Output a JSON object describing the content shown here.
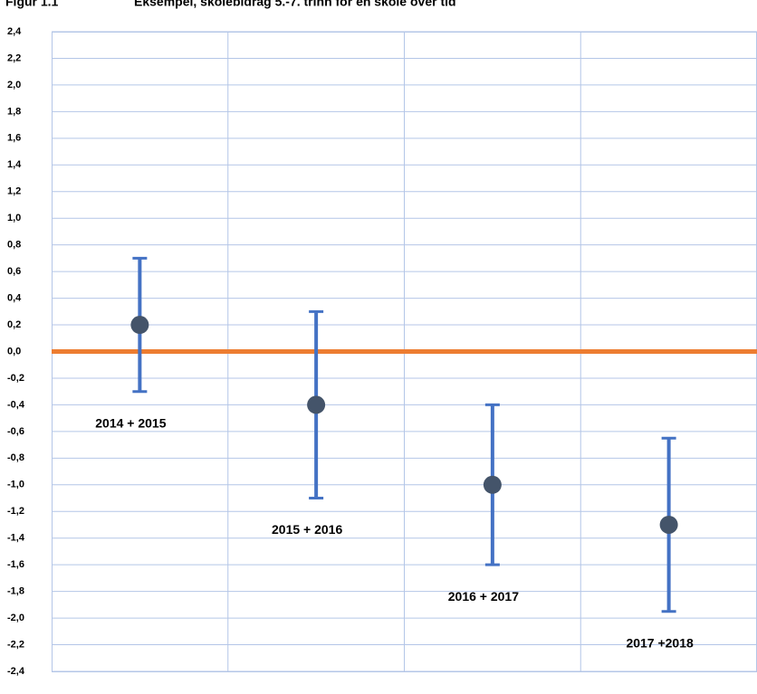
{
  "chart_data": {
    "type": "errorbar",
    "figure_label": "Figur 1.1",
    "title": "Eksempel, skolebidrag 5.-7. trinn for en skole over tid",
    "categories": [
      "2014 + 2015",
      "2015 + 2016",
      "2016 + 2017",
      "2017 +2018"
    ],
    "values": [
      0.2,
      -0.4,
      -1.0,
      -1.3
    ],
    "errors": [
      0.5,
      0.7,
      0.6,
      0.65
    ],
    "color": "#4472c4",
    "point_color": "#44546a",
    "reference_line": {
      "value": 0,
      "color": "#ed7d31"
    },
    "ylim": [
      -2.4,
      2.4
    ],
    "yticks": [
      {
        "value": 2.4,
        "label": "2,4"
      },
      {
        "value": 2.2,
        "label": "2,2"
      },
      {
        "value": 2.0,
        "label": "2,0"
      },
      {
        "value": 1.8,
        "label": "1,8"
      },
      {
        "value": 1.6,
        "label": "1,6"
      },
      {
        "value": 1.4,
        "label": "1,4"
      },
      {
        "value": 1.2,
        "label": "1,2"
      },
      {
        "value": 1.0,
        "label": "1,0"
      },
      {
        "value": 0.8,
        "label": "0,8"
      },
      {
        "value": 0.6,
        "label": "0,6"
      },
      {
        "value": 0.4,
        "label": "0,4"
      },
      {
        "value": 0.2,
        "label": "0,2"
      },
      {
        "value": 0,
        "label": "0,0"
      },
      {
        "value": -0.2,
        "label": "-0,2"
      },
      {
        "value": -0.4,
        "label": "-0,4"
      },
      {
        "value": -0.6,
        "label": "-0,6"
      },
      {
        "value": -0.8,
        "label": "-0,8"
      },
      {
        "value": -1.0,
        "label": "-1,0"
      },
      {
        "value": -1.2,
        "label": "-1,2"
      },
      {
        "value": -1.4,
        "label": "-1,4"
      },
      {
        "value": -1.6,
        "label": "-1,6"
      },
      {
        "value": -1.8,
        "label": "-1,8"
      },
      {
        "value": -2.0,
        "label": "-2,0"
      },
      {
        "value": -2.2,
        "label": "-2,2"
      },
      {
        "value": -2.4,
        "label": "-2,4"
      }
    ],
    "grid": true
  }
}
